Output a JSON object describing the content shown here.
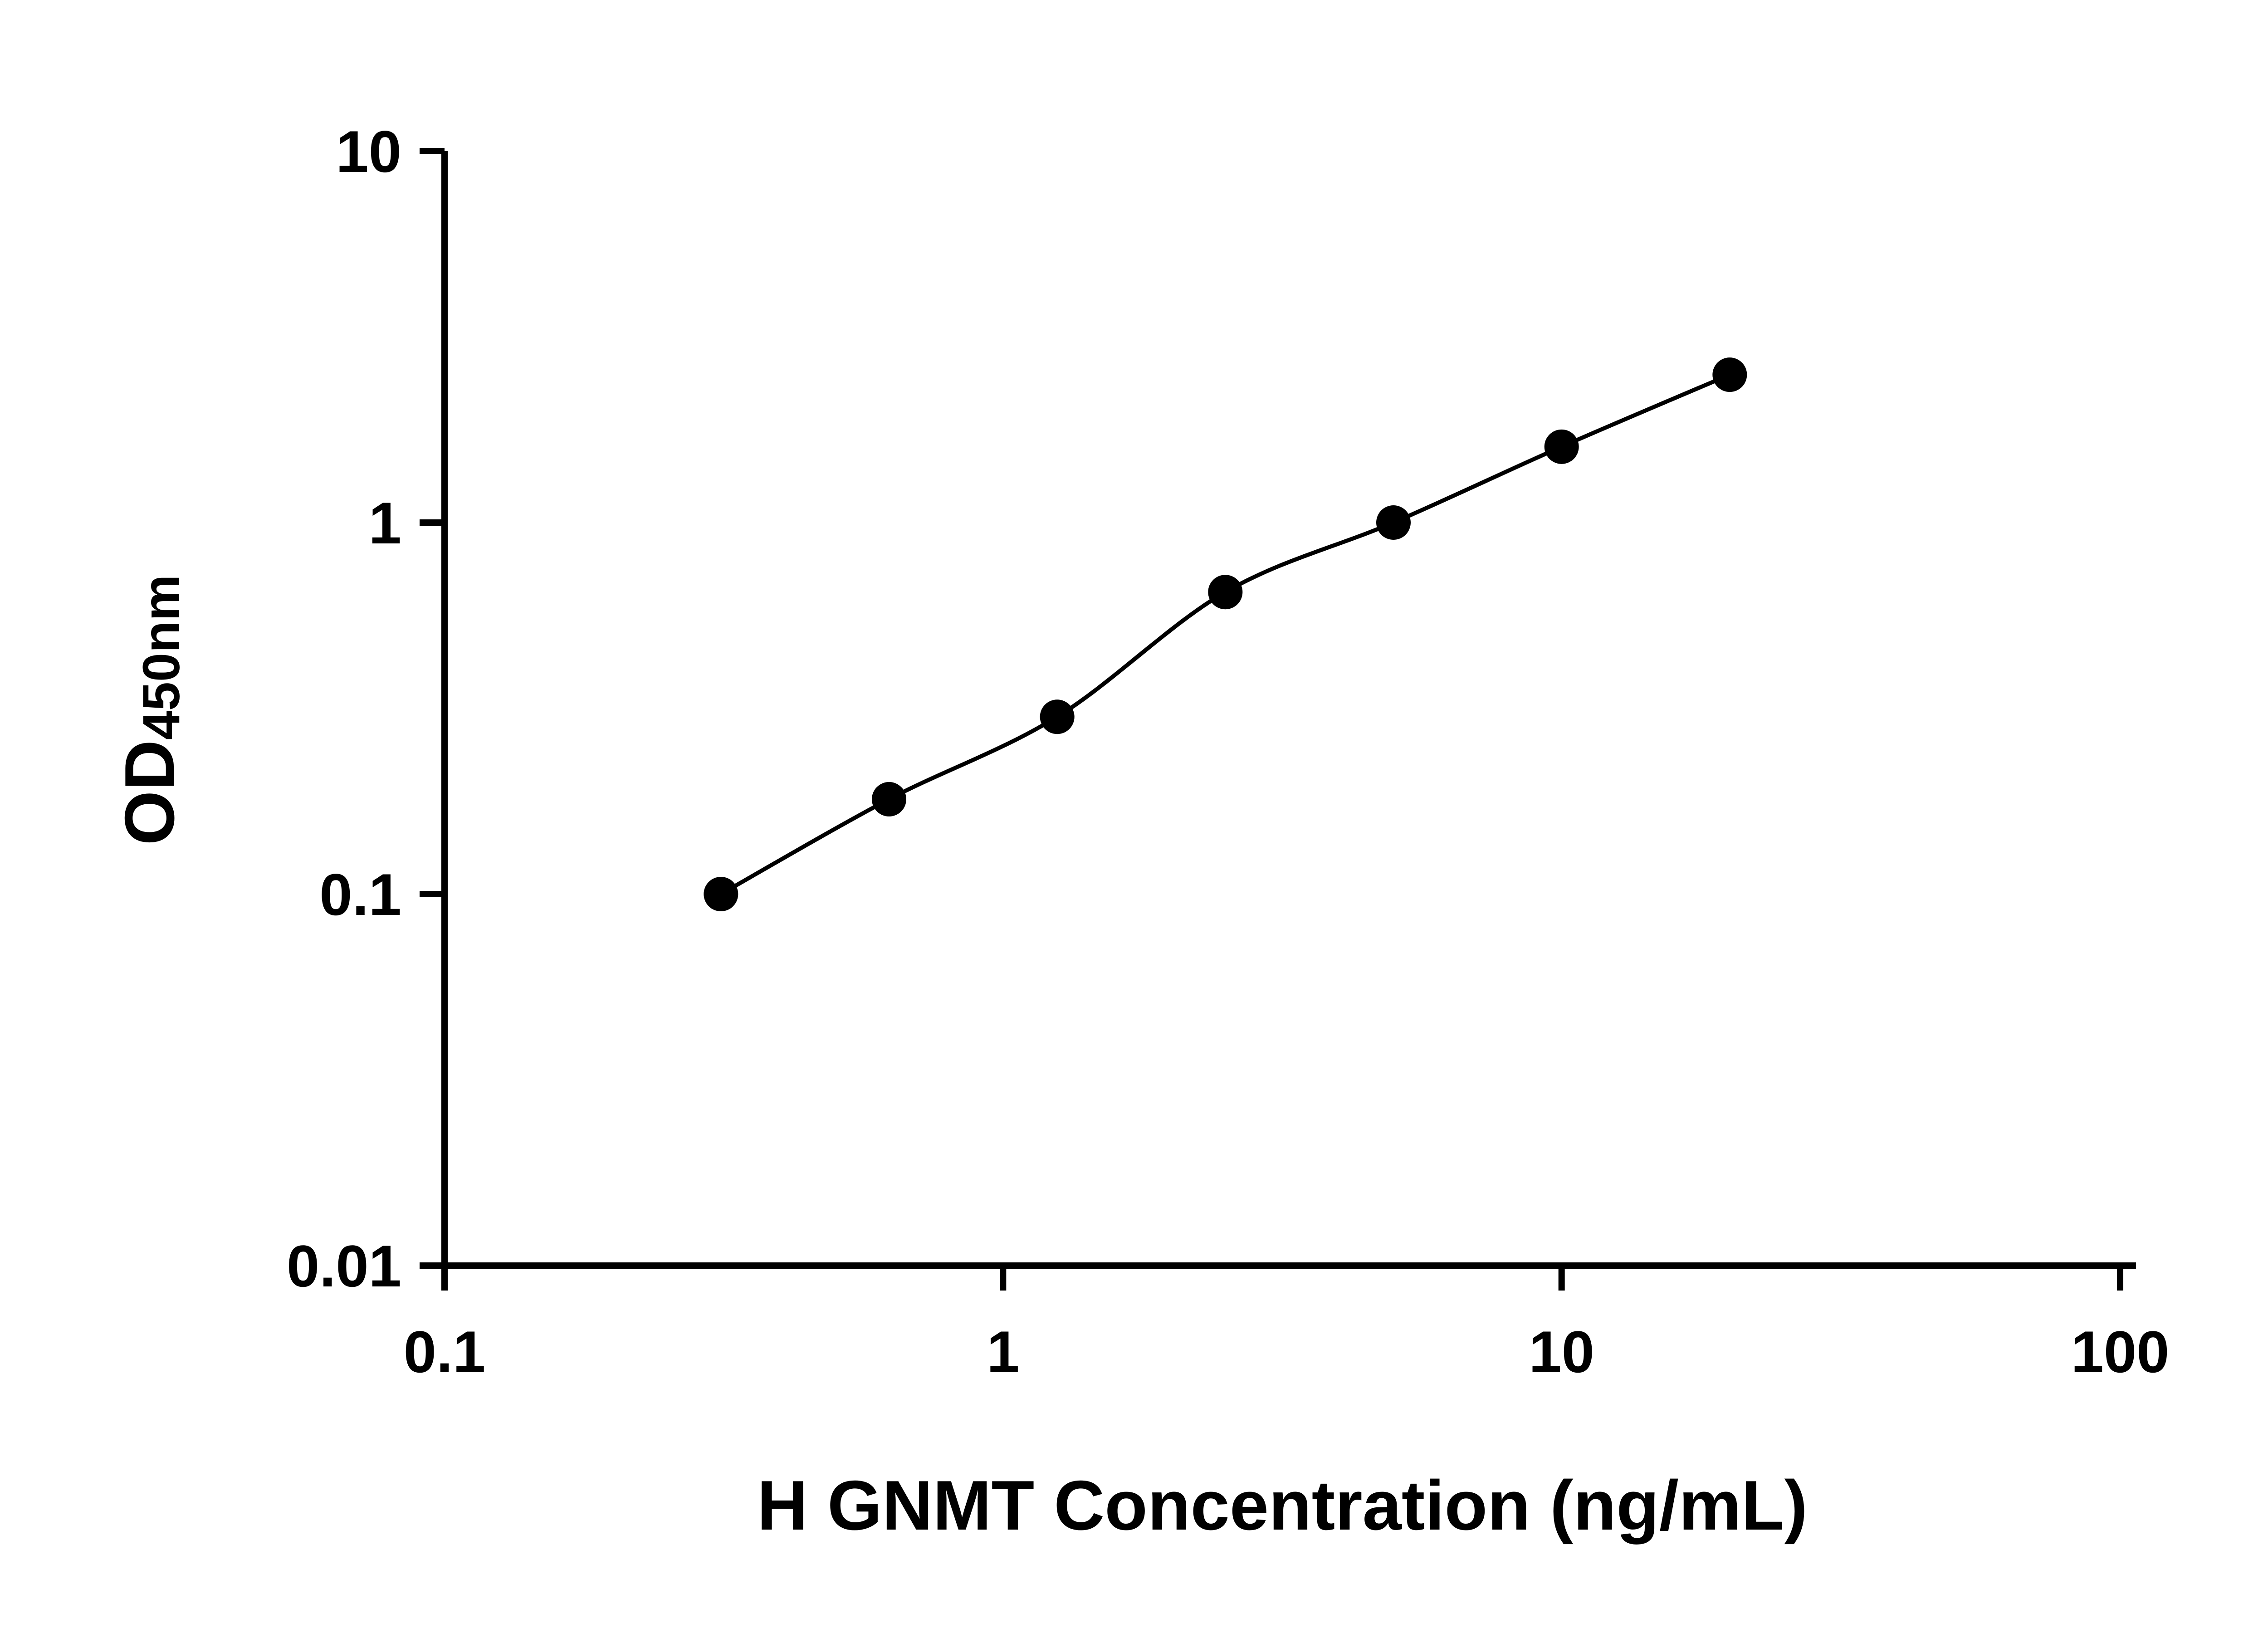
{
  "figure": {
    "background": "#ffffff",
    "description": "ELISA standard curve, log-log scatter plot with fitted line"
  },
  "chart_data": {
    "type": "scatter",
    "title": "",
    "xlabel": "H GNMT Concentration (ng/mL)",
    "ylabel": "OD450nm",
    "ylabel_main": "OD",
    "ylabel_sub": "450nm",
    "x": [
      0.3125,
      0.625,
      1.25,
      2.5,
      5,
      10,
      20
    ],
    "y": [
      0.1,
      0.18,
      0.3,
      0.65,
      1.0,
      1.6,
      2.5
    ],
    "xscale": "log",
    "yscale": "log",
    "xlim": [
      0.1,
      100
    ],
    "ylim": [
      0.01,
      10
    ],
    "xticks": [
      0.1,
      1,
      10,
      100
    ],
    "yticks": [
      0.01,
      0.1,
      1,
      10
    ],
    "xtick_labels": [
      "0.1",
      "1",
      "10",
      "100"
    ],
    "ytick_labels": [
      "0.01",
      "0.1",
      "1",
      "10"
    ],
    "grid": false,
    "legend": "none",
    "marker_color": "#000000",
    "line_color": "#000000",
    "fit": "smooth curve through data points (standard-curve fit)"
  }
}
